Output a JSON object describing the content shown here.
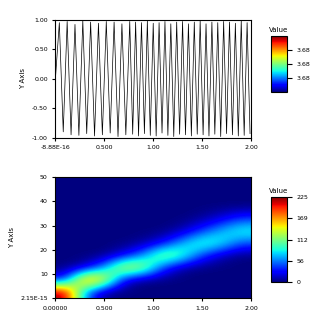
{
  "chart_data": [
    {
      "type": "line",
      "y_label": "Y Axis",
      "color": "#000000",
      "x": [
        0,
        0.04,
        0.08,
        0.12,
        0.16,
        0.2,
        0.24,
        0.28,
        0.32,
        0.36,
        0.4,
        0.44,
        0.48,
        0.52,
        0.56,
        0.6,
        0.64,
        0.68,
        0.72,
        0.76,
        0.79,
        0.82,
        0.85,
        0.88,
        0.91,
        0.94,
        0.97,
        1.0,
        1.03,
        1.06,
        1.09,
        1.12,
        1.15,
        1.18,
        1.21,
        1.24,
        1.27,
        1.3,
        1.33,
        1.36,
        1.39,
        1.42,
        1.45,
        1.48,
        1.51,
        1.54,
        1.57,
        1.6,
        1.63,
        1.66,
        1.69,
        1.72,
        1.75,
        1.78,
        1.81,
        1.84,
        1.87,
        1.9,
        1.93,
        1.96,
        1.99
      ],
      "values": [
        0.0,
        0.95,
        -0.9,
        0.97,
        -0.95,
        0.92,
        -0.96,
        0.98,
        -0.93,
        0.96,
        -0.97,
        0.94,
        -0.95,
        0.97,
        -0.92,
        0.96,
        -0.98,
        0.93,
        -0.95,
        0.97,
        -0.94,
        0.96,
        -0.97,
        0.95,
        -0.93,
        0.98,
        -0.96,
        0.94,
        -0.97,
        0.95,
        -0.92,
        0.97,
        -0.96,
        0.93,
        -0.98,
        0.96,
        -0.94,
        0.97,
        -0.95,
        0.93,
        -0.97,
        0.96,
        -0.94,
        0.98,
        -0.95,
        0.93,
        -0.97,
        0.96,
        -0.94,
        0.95,
        -0.98,
        0.97,
        -0.93,
        0.96,
        -0.95,
        0.94,
        -0.97,
        0.98,
        -0.96,
        0.95,
        -0.93
      ],
      "xlim": [
        0,
        2.0
      ],
      "xticks": [
        {
          "value": 0,
          "label": "-8.88E-16"
        },
        {
          "value": 0.5,
          "label": "0.500"
        },
        {
          "value": 1.0,
          "label": "1.00"
        },
        {
          "value": 1.5,
          "label": "1.50"
        },
        {
          "value": 2.0,
          "label": "2.00"
        }
      ],
      "ylim": [
        -1,
        1
      ],
      "yticks": [
        {
          "value": -1,
          "label": "-1.00"
        },
        {
          "value": -0.5,
          "label": "-0.50"
        },
        {
          "value": 0,
          "label": "0.00"
        },
        {
          "value": 0.5,
          "label": "0.50"
        },
        {
          "value": 1,
          "label": "1.00"
        }
      ],
      "colorbar": {
        "title": "Value",
        "range": [
          3.679,
          3.681
        ],
        "ticks": [
          {
            "value": 3.6795,
            "label": "3.68"
          },
          {
            "value": 3.68,
            "label": "3.68"
          },
          {
            "value": 3.6805,
            "label": "3.68"
          }
        ]
      }
    },
    {
      "type": "heatmap",
      "y_label": "Y Axis",
      "cells": [
        [
          225,
          60,
          0,
          0,
          0,
          0,
          0,
          0,
          0,
          0
        ],
        [
          30,
          190,
          160,
          20,
          0,
          0,
          0,
          0,
          0,
          0
        ],
        [
          0,
          10,
          60,
          150,
          130,
          40,
          5,
          0,
          0,
          0
        ],
        [
          0,
          0,
          0,
          20,
          60,
          125,
          100,
          40,
          10,
          0
        ],
        [
          0,
          0,
          0,
          0,
          5,
          25,
          70,
          100,
          85,
          45
        ],
        [
          0,
          0,
          0,
          0,
          0,
          0,
          10,
          40,
          70,
          90
        ],
        [
          0,
          0,
          0,
          0,
          0,
          0,
          0,
          5,
          20,
          40
        ],
        [
          0,
          0,
          0,
          0,
          0,
          0,
          0,
          0,
          0,
          0
        ],
        [
          0,
          0,
          0,
          0,
          0,
          0,
          0,
          0,
          0,
          0
        ],
        [
          0,
          0,
          0,
          0,
          0,
          0,
          0,
          0,
          0,
          0
        ]
      ],
      "xlim": [
        0,
        2.0
      ],
      "xticks": [
        {
          "value": 0,
          "label": "0.00000"
        },
        {
          "value": 0.5,
          "label": "0.500"
        },
        {
          "value": 1.0,
          "label": "1.00"
        },
        {
          "value": 1.5,
          "label": "1.50"
        },
        {
          "value": 2.0,
          "label": "2.00"
        }
      ],
      "ylim": [
        2.15e-15,
        50
      ],
      "yticks": [
        {
          "value": 2.15e-15,
          "label": "2.15E-15"
        },
        10,
        20,
        30,
        40,
        50
      ],
      "colorbar": {
        "title": "Value",
        "range": [
          0,
          225
        ],
        "ticks": [
          0,
          56,
          112,
          169,
          225
        ]
      }
    }
  ]
}
